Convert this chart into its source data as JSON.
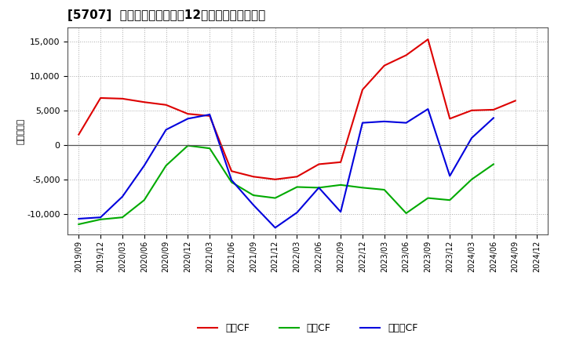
{
  "title": "[5707]  キャッシュフローの12か月移動合計の推移",
  "ylabel": "（百万円）",
  "background_color": "#ffffff",
  "plot_bg_color": "#ffffff",
  "grid_color": "#aaaaaa",
  "ylim": [
    -13000,
    17000
  ],
  "yticks": [
    -10000,
    -5000,
    0,
    5000,
    10000,
    15000
  ],
  "x_labels": [
    "2019/09",
    "2019/12",
    "2020/03",
    "2020/06",
    "2020/09",
    "2020/12",
    "2021/03",
    "2021/06",
    "2021/09",
    "2021/12",
    "2022/03",
    "2022/06",
    "2022/09",
    "2022/12",
    "2023/03",
    "2023/06",
    "2023/09",
    "2023/12",
    "2024/03",
    "2024/06",
    "2024/09",
    "2024/12"
  ],
  "series": {
    "営業CF": {
      "color": "#dd0000",
      "values": [
        1500,
        6800,
        6700,
        6200,
        5800,
        4500,
        4200,
        -3800,
        -4600,
        -5000,
        -4600,
        -2800,
        -2500,
        8000,
        11500,
        13000,
        15300,
        3800,
        5000,
        5100,
        6400,
        null
      ]
    },
    "投資CF": {
      "color": "#00aa00",
      "values": [
        -11500,
        -10800,
        -10500,
        -8000,
        -3000,
        -100,
        -500,
        -5400,
        -7300,
        -7700,
        -6100,
        -6200,
        -5800,
        -6200,
        -6500,
        -9900,
        -7700,
        -8000,
        -5000,
        -2800,
        null,
        null
      ]
    },
    "フリーCF": {
      "color": "#0000dd",
      "values": [
        -10700,
        -10500,
        -7500,
        -3000,
        2200,
        3800,
        4400,
        -5100,
        -8700,
        -12000,
        -9800,
        -6200,
        -9700,
        3200,
        3400,
        3200,
        5200,
        -4500,
        1000,
        3900,
        null,
        null
      ]
    }
  },
  "legend_labels": [
    "営業CF",
    "投資CF",
    "フリーCF"
  ],
  "legend_colors": [
    "#dd0000",
    "#00aa00",
    "#0000dd"
  ]
}
